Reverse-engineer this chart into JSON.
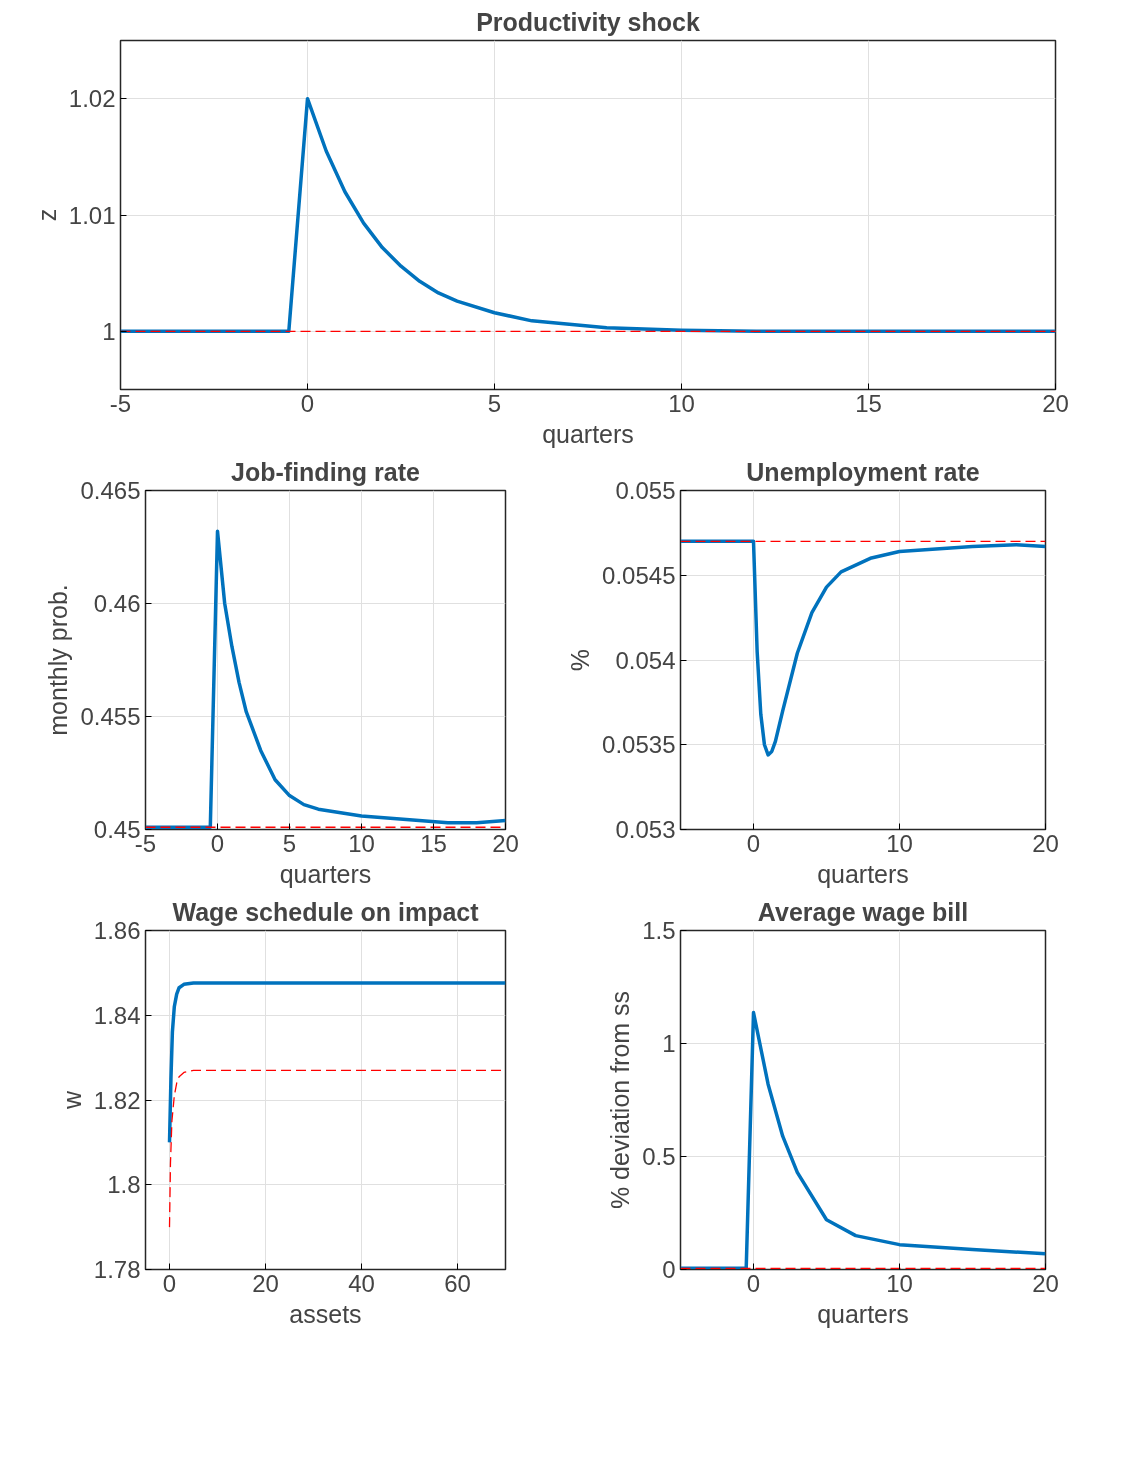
{
  "chart_data": [
    {
      "type": "line",
      "title": "Productivity shock",
      "xlabel": "quarters",
      "ylabel": "z",
      "xlim": [
        -5,
        20
      ],
      "xticks": [
        -5,
        0,
        5,
        10,
        15,
        20
      ],
      "ylim": [
        0.995,
        1.025
      ],
      "yticks": [
        1,
        1.01,
        1.02
      ],
      "grid": true,
      "series": [
        {
          "color": "#0072bd",
          "line_style": "solid",
          "x": [
            -5,
            -0.5,
            0,
            0.5,
            1,
            1.5,
            2,
            2.5,
            3,
            3.5,
            4,
            5,
            6,
            7,
            8,
            10,
            12,
            20
          ],
          "values": [
            1,
            1,
            1.02,
            1.0155,
            1.012,
            1.0093,
            1.0072,
            1.0056,
            1.0043,
            1.0033,
            1.0026,
            1.0016,
            1.0009,
            1.0006,
            1.0003,
            1.0001,
            1,
            1
          ]
        },
        {
          "color": "#ff0000",
          "line_style": "dashed",
          "x": [
            -5,
            20
          ],
          "values": [
            1,
            1
          ]
        }
      ]
    },
    {
      "type": "line",
      "title": "Job-finding rate",
      "xlabel": "quarters",
      "ylabel": "monthly prob.",
      "xlim": [
        -5,
        20
      ],
      "xticks": [
        -5,
        0,
        5,
        10,
        15,
        20
      ],
      "ylim": [
        0.45,
        0.465
      ],
      "yticks": [
        0.45,
        0.455,
        0.46,
        0.465
      ],
      "grid": true,
      "series": [
        {
          "color": "#0072bd",
          "line_style": "solid",
          "x": [
            -5,
            -0.5,
            0,
            0.5,
            1,
            1.5,
            2,
            3,
            4,
            5,
            6,
            7,
            8,
            10,
            12,
            14,
            16,
            18,
            20
          ],
          "values": [
            0.4501,
            0.4501,
            0.4632,
            0.46,
            0.4581,
            0.4565,
            0.4552,
            0.4535,
            0.4522,
            0.4515,
            0.4511,
            0.4509,
            0.4508,
            0.4506,
            0.4505,
            0.4504,
            0.4503,
            0.4503,
            0.4504
          ]
        },
        {
          "color": "#ff0000",
          "line_style": "dashed",
          "x": [
            -5,
            20
          ],
          "values": [
            0.4501,
            0.4501
          ]
        }
      ]
    },
    {
      "type": "line",
      "title": "Unemployment rate",
      "xlabel": "quarters",
      "ylabel": "%",
      "xlim": [
        -5,
        20
      ],
      "xticks": [
        0,
        10,
        20
      ],
      "ylim": [
        0.053,
        0.055
      ],
      "yticks": [
        0.053,
        0.0535,
        0.054,
        0.0545,
        0.055
      ],
      "grid": true,
      "series": [
        {
          "color": "#0072bd",
          "line_style": "solid",
          "x": [
            -5,
            0,
            0.25,
            0.5,
            0.75,
            1,
            1.25,
            1.5,
            2,
            3,
            4,
            5,
            6,
            8,
            10,
            15,
            18,
            20
          ],
          "values": [
            0.0547,
            0.0547,
            0.05405,
            0.05368,
            0.0535,
            0.05344,
            0.05346,
            0.05352,
            0.0537,
            0.05404,
            0.05428,
            0.05443,
            0.05452,
            0.0546,
            0.05464,
            0.05467,
            0.05468,
            0.05467
          ]
        },
        {
          "color": "#ff0000",
          "line_style": "dashed",
          "x": [
            -5,
            20
          ],
          "values": [
            0.0547,
            0.0547
          ]
        }
      ]
    },
    {
      "type": "line",
      "title": "Wage schedule on impact",
      "xlabel": "assets",
      "ylabel": "w",
      "xlim": [
        -5,
        70
      ],
      "xticks": [
        0,
        20,
        40,
        60
      ],
      "ylim": [
        1.78,
        1.86
      ],
      "yticks": [
        1.78,
        1.8,
        1.82,
        1.84,
        1.86
      ],
      "grid": true,
      "series": [
        {
          "color": "#0072bd",
          "line_style": "solid",
          "x": [
            0,
            0.3,
            0.6,
            1,
            1.5,
            2,
            3,
            5,
            70
          ],
          "values": [
            1.81,
            1.825,
            1.836,
            1.842,
            1.845,
            1.8465,
            1.8473,
            1.8476,
            1.8476
          ]
        },
        {
          "color": "#ff0000",
          "line_style": "dashed",
          "x": [
            0,
            0.2,
            0.5,
            1,
            1.5,
            2,
            3,
            5,
            70
          ],
          "values": [
            1.79,
            1.805,
            1.815,
            1.821,
            1.824,
            1.8255,
            1.8265,
            1.827,
            1.827
          ]
        }
      ]
    },
    {
      "type": "line",
      "title": "Average wage bill",
      "xlabel": "quarters",
      "ylabel": "% deviation from ss",
      "xlim": [
        -5,
        20
      ],
      "xticks": [
        0,
        10,
        20
      ],
      "ylim": [
        0,
        1.5
      ],
      "yticks": [
        0,
        0.5,
        1,
        1.5
      ],
      "grid": true,
      "series": [
        {
          "color": "#0072bd",
          "line_style": "solid",
          "x": [
            -5,
            -0.5,
            0,
            1,
            2,
            3,
            5,
            7,
            10,
            15,
            20
          ],
          "values": [
            0.005,
            0.005,
            1.137,
            0.82,
            0.59,
            0.43,
            0.22,
            0.15,
            0.11,
            0.088,
            0.07
          ]
        },
        {
          "color": "#ff0000",
          "line_style": "dashed",
          "x": [
            -5,
            20
          ],
          "values": [
            0.005,
            0.005
          ]
        }
      ]
    }
  ]
}
